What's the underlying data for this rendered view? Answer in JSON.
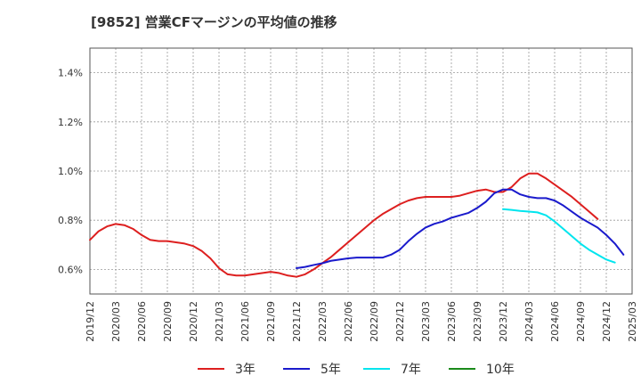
{
  "chart_data": {
    "type": "line",
    "title": "[9852]  営業CFマージンの平均値の推移",
    "xlabel": "",
    "ylabel": "",
    "ylim": [
      0.5,
      1.5
    ],
    "y_ticks": [
      0.6,
      0.8,
      1.0,
      1.2,
      1.4
    ],
    "y_tick_labels": [
      "0.6%",
      "0.8%",
      "1.0%",
      "1.2%",
      "1.4%"
    ],
    "x_tick_labels": [
      "2019/12",
      "2020/03",
      "2020/06",
      "2020/09",
      "2020/12",
      "2021/03",
      "2021/06",
      "2021/09",
      "2021/12",
      "2022/03",
      "2022/06",
      "2022/09",
      "2022/12",
      "2023/03",
      "2023/06",
      "2023/09",
      "2023/12",
      "2024/03",
      "2024/06",
      "2024/09",
      "2024/12",
      "2025/03"
    ],
    "grid": true,
    "legend_position": "bottom",
    "series": [
      {
        "name": "3年",
        "color": "#dd1f1f",
        "start": "2019/12",
        "values": [
          0.72,
          0.755,
          0.775,
          0.785,
          0.78,
          0.765,
          0.74,
          0.72,
          0.715,
          0.715,
          0.71,
          0.705,
          0.695,
          0.675,
          0.645,
          0.605,
          0.58,
          0.575,
          0.575,
          0.58,
          0.585,
          0.59,
          0.585,
          0.575,
          0.57,
          0.58,
          0.6,
          0.625,
          0.65,
          0.68,
          0.71,
          0.74,
          0.77,
          0.8,
          0.825,
          0.845,
          0.865,
          0.88,
          0.89,
          0.895,
          0.895,
          0.895,
          0.895,
          0.9,
          0.91,
          0.92,
          0.925,
          0.915,
          0.915,
          0.935,
          0.97,
          0.99,
          0.99,
          0.97,
          0.945,
          0.92,
          0.895,
          0.865,
          0.835,
          0.805
        ]
      },
      {
        "name": "5年",
        "color": "#1a1acc",
        "start": "2021/12",
        "values": [
          0.605,
          0.61,
          0.618,
          0.625,
          0.635,
          0.64,
          0.645,
          0.648,
          0.648,
          0.648,
          0.648,
          0.66,
          0.68,
          0.715,
          0.745,
          0.77,
          0.785,
          0.795,
          0.81,
          0.82,
          0.83,
          0.85,
          0.875,
          0.91,
          0.925,
          0.925,
          0.905,
          0.895,
          0.89,
          0.89,
          0.88,
          0.86,
          0.835,
          0.81,
          0.79,
          0.77,
          0.74,
          0.705,
          0.66
        ]
      },
      {
        "name": "7年",
        "color": "#00e5ee",
        "start": "2023/12",
        "values": [
          0.845,
          0.842,
          0.838,
          0.835,
          0.832,
          0.82,
          0.795,
          0.765,
          0.735,
          0.705,
          0.68,
          0.66,
          0.64,
          0.628
        ]
      },
      {
        "name": "10年",
        "color": "#1a8a1a",
        "start": "2024/12",
        "values": []
      }
    ]
  }
}
